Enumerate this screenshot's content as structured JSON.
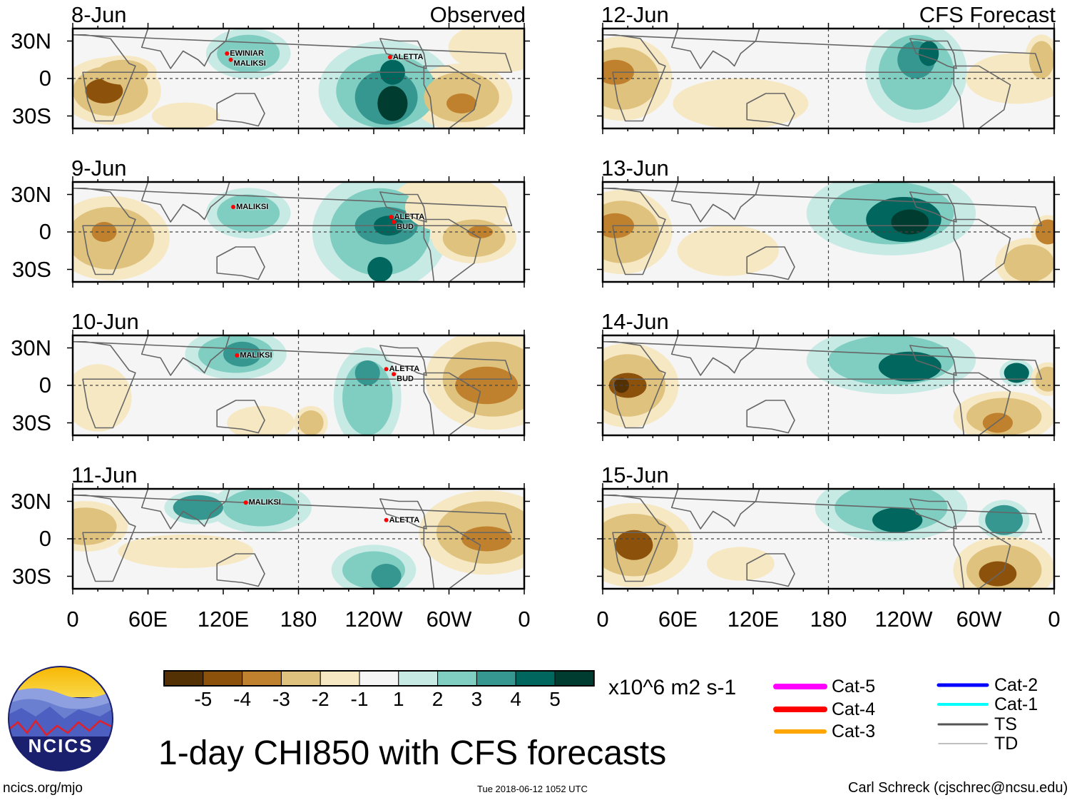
{
  "chart_data": {
    "type": "heatmap",
    "title": "1-day CHI850 with CFS forecasts",
    "units": "x10^6 m2 s-1",
    "columns": [
      {
        "header": "Observed",
        "panels": [
          {
            "date": "8-Jun",
            "storms": [
              {
                "name": "EWINIAR",
                "lon": 123,
                "lat": 20
              },
              {
                "name": "MALIKSI",
                "lon": 126,
                "lat": 15
              },
              {
                "name": "ALETTA",
                "lon": 253,
                "lat": 17
              }
            ]
          },
          {
            "date": "9-Jun",
            "storms": [
              {
                "name": "MALIKSI",
                "lon": 128,
                "lat": 20
              },
              {
                "name": "ALETTA",
                "lon": 254,
                "lat": 12
              },
              {
                "name": "BUD",
                "lon": 256,
                "lat": 8
              }
            ]
          },
          {
            "date": "10-Jun",
            "storms": [
              {
                "name": "MALIKSI",
                "lon": 131,
                "lat": 24
              },
              {
                "name": "ALETTA",
                "lon": 250,
                "lat": 13
              },
              {
                "name": "BUD",
                "lon": 256,
                "lat": 9
              }
            ]
          },
          {
            "date": "11-Jun",
            "storms": [
              {
                "name": "MALIKSI",
                "lon": 138,
                "lat": 29
              },
              {
                "name": "ALETTA",
                "lon": 250,
                "lat": 15
              }
            ]
          }
        ]
      },
      {
        "header": "CFS Forecast",
        "panels": [
          {
            "date": "12-Jun",
            "storms": []
          },
          {
            "date": "13-Jun",
            "storms": []
          },
          {
            "date": "14-Jun",
            "storms": []
          },
          {
            "date": "15-Jun",
            "storms": []
          }
        ]
      }
    ],
    "lat_ticks": [
      "30N",
      "0",
      "30S"
    ],
    "lon_ticks": [
      "0",
      "60E",
      "120E",
      "180",
      "120W",
      "60W",
      "0"
    ],
    "lat_range": [
      -40,
      40
    ],
    "lon_range": [
      0,
      360
    ],
    "colorbar": {
      "labels": [
        "-5",
        "-4",
        "-3",
        "-2",
        "-1",
        "1",
        "2",
        "3",
        "4",
        "5"
      ],
      "colors": [
        "#543005",
        "#8c510a",
        "#bf812d",
        "#dfc27d",
        "#f6e8c3",
        "#f5f5f5",
        "#c7eae5",
        "#80cdc1",
        "#35978f",
        "#01665e",
        "#003c30"
      ]
    }
  },
  "legend": {
    "items": [
      {
        "label": "Cat-5",
        "color": "#ff00ff"
      },
      {
        "label": "Cat-4",
        "color": "#ff0000"
      },
      {
        "label": "Cat-3",
        "color": "#ffa500"
      },
      {
        "label": "Cat-2",
        "color": "#0000ff"
      },
      {
        "label": "Cat-1",
        "color": "#00ffff"
      },
      {
        "label": "TS",
        "color": "#555555"
      },
      {
        "label": "TD",
        "color": "#aaaaaa"
      }
    ]
  },
  "logo": {
    "text": "NCICS"
  },
  "footer": {
    "url": "ncics.org/mjo",
    "timestamp": "Tue 2018-06-12 1052 UTC",
    "credit": "Carl Schreck (cjschrec@ncsu.edu)"
  }
}
